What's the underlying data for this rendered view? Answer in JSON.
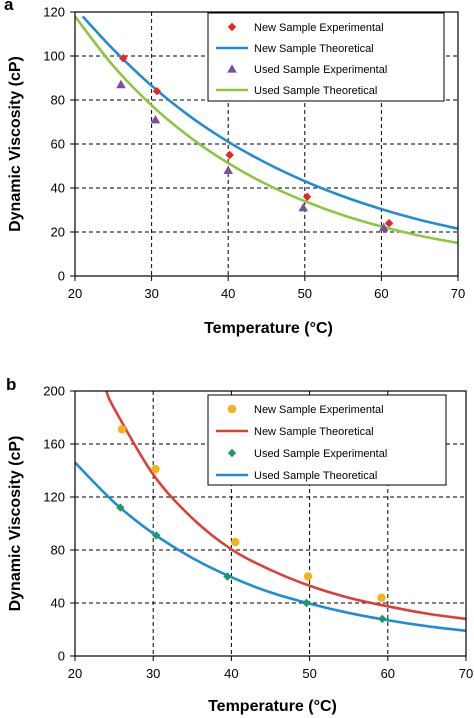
{
  "chart_data": [
    {
      "panel_label": "a",
      "type": "scatter",
      "xlabel": "Temperature (°C)",
      "ylabel": "Dynamic Viscosity (cP)",
      "xlim": [
        20,
        70
      ],
      "ylim": [
        0,
        120
      ],
      "xticks": [
        20,
        30,
        40,
        50,
        60,
        70
      ],
      "yticks": [
        0,
        20,
        40,
        60,
        80,
        100,
        120
      ],
      "grid": true,
      "legend_position": "top-right",
      "series": [
        {
          "name": "New Sample Experimental",
          "kind": "markers",
          "marker": "diamond",
          "color": "#e8251f",
          "x": [
            26.3,
            30.7,
            40.2,
            50.3,
            61.0
          ],
          "y": [
            99,
            84,
            55,
            36,
            24
          ]
        },
        {
          "name": "New Sample Theoretical",
          "kind": "line",
          "color": "#1f8dd6",
          "x": [
            21,
            25,
            30,
            35,
            40,
            45,
            50,
            55,
            60,
            65,
            70
          ],
          "y": [
            118,
            103,
            86.5,
            72.6,
            61.0,
            51.3,
            43.1,
            36.2,
            30.4,
            25.5,
            21.5
          ]
        },
        {
          "name": "Used Sample Experimental",
          "kind": "markers",
          "marker": "triangle",
          "color": "#7b4fa0",
          "x": [
            26.0,
            30.5,
            40.0,
            49.8,
            60.3
          ],
          "y": [
            87,
            71,
            48,
            31,
            22
          ]
        },
        {
          "name": "Used Sample Theoretical",
          "kind": "line",
          "color": "#8dc63f",
          "x": [
            20,
            25,
            30,
            35,
            40,
            45,
            50,
            55,
            60,
            65,
            70
          ],
          "y": [
            118,
            95.5,
            77.6,
            63.1,
            51.3,
            41.7,
            34.0,
            27.6,
            22.5,
            18.3,
            15.0
          ]
        }
      ]
    },
    {
      "panel_label": "b",
      "type": "scatter",
      "xlabel": "Temperature (°C)",
      "ylabel": "Dynamic Viscosity (cP)",
      "xlim": [
        20,
        70
      ],
      "ylim": [
        0,
        200
      ],
      "xticks": [
        20,
        30,
        40,
        50,
        60,
        70
      ],
      "yticks": [
        0,
        40,
        80,
        120,
        160,
        200
      ],
      "grid": true,
      "legend_position": "top-right",
      "series": [
        {
          "name": "New Sample Experimental",
          "kind": "markers",
          "marker": "circle",
          "color": "#f5b21a",
          "x": [
            26.0,
            30.3,
            40.5,
            49.8,
            59.2
          ],
          "y": [
            171,
            141,
            86,
            60,
            44
          ]
        },
        {
          "name": "New Sample Theoretical",
          "kind": "line",
          "color": "#d9403a",
          "x": [
            24,
            25,
            30,
            35,
            40,
            45,
            50,
            55,
            60,
            65,
            70
          ],
          "y": [
            200,
            187,
            137,
            104,
            80.5,
            65,
            53,
            44,
            37.5,
            32,
            28
          ]
        },
        {
          "name": "Used Sample Experimental",
          "kind": "markers",
          "marker": "diamond",
          "color": "#1a9a6a",
          "x": [
            25.8,
            30.4,
            39.5,
            49.6,
            59.3
          ],
          "y": [
            112,
            91,
            60,
            40,
            28
          ]
        },
        {
          "name": "Used Sample Theoretical",
          "kind": "line",
          "color": "#1f8dd6",
          "x": [
            20,
            25,
            30,
            35,
            40,
            45,
            50,
            55,
            60,
            65,
            70
          ],
          "y": [
            146,
            116,
            92.5,
            74,
            59.5,
            48,
            39.5,
            32.5,
            27,
            22.5,
            19
          ]
        }
      ]
    }
  ]
}
